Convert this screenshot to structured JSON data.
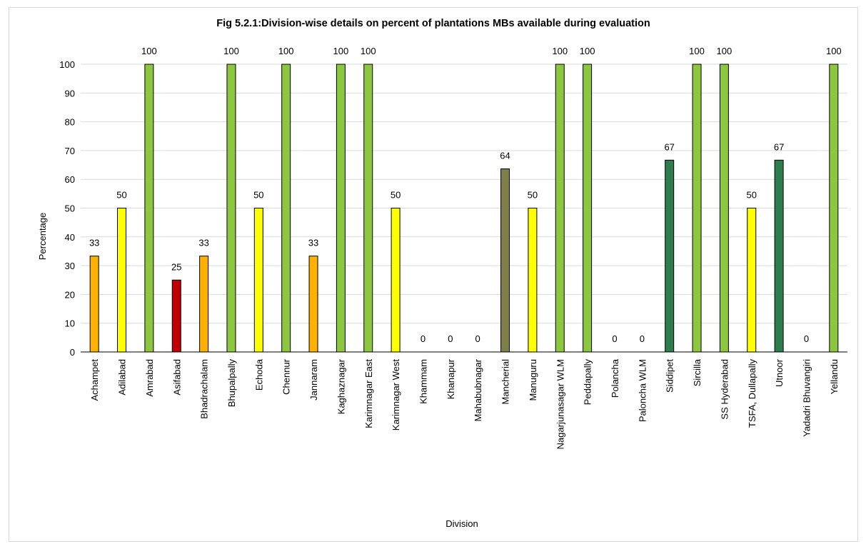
{
  "chart_data": {
    "type": "bar",
    "title": "Fig 5.2.1:Division-wise details on percent of plantations MBs available during evaluation",
    "xlabel": "Division",
    "ylabel": "Percentage",
    "ylim": [
      0,
      100
    ],
    "yticks": [
      0,
      10,
      20,
      30,
      40,
      50,
      60,
      70,
      80,
      90,
      100
    ],
    "grid": true,
    "legend": "none",
    "categories": [
      "Achampet",
      "Adilabad",
      "Amrabad",
      "Asifabad",
      "Bhadrachalam",
      "Bhupalpally",
      "Echoda",
      "Chennur",
      "Jannaram",
      "Kaghaznagar",
      "Karimnagar East",
      "Karimnagar West",
      "Khammam",
      "Khanapur",
      "Mahabubnagar",
      "Mancherial",
      "Manuguru",
      "Nagarjunasagar WLM",
      "Peddapally",
      "Polancha",
      "Paloncha WLM",
      "Siddipet",
      "Sircilla",
      "SS Hyderabad",
      "TSFA, Dullapally",
      "Utnoor",
      "Yadadri Bhuvangiri",
      "Yellandu"
    ],
    "values": [
      33.33,
      50,
      100,
      25,
      33.33,
      100,
      50,
      100,
      33.33,
      100,
      100,
      50,
      0,
      0,
      0,
      63.64,
      50,
      100,
      100,
      0,
      0,
      66.67,
      100,
      100,
      50,
      66.67,
      0,
      100
    ],
    "value_labels": [
      "33",
      "50",
      "100",
      "25",
      "33",
      "100",
      "50",
      "100",
      "33",
      "100",
      "100",
      "50",
      "0",
      "0",
      "0",
      "64",
      "50",
      "100",
      "100",
      "0",
      "0",
      "67",
      "100",
      "100",
      "50",
      "67",
      "0",
      "100"
    ],
    "colors": [
      "#FFB000",
      "#FFFF00",
      "#8DC63F",
      "#C00000",
      "#FFB000",
      "#8DC63F",
      "#FFFF00",
      "#8DC63F",
      "#FFB000",
      "#8DC63F",
      "#8DC63F",
      "#FFFF00",
      "#8DC63F",
      "#8DC63F",
      "#8DC63F",
      "#7F7F4C",
      "#FFFF00",
      "#8DC63F",
      "#8DC63F",
      "#8DC63F",
      "#8DC63F",
      "#2E7D4F",
      "#8DC63F",
      "#8DC63F",
      "#FFFF00",
      "#2E7D4F",
      "#8DC63F",
      "#8DC63F"
    ]
  }
}
